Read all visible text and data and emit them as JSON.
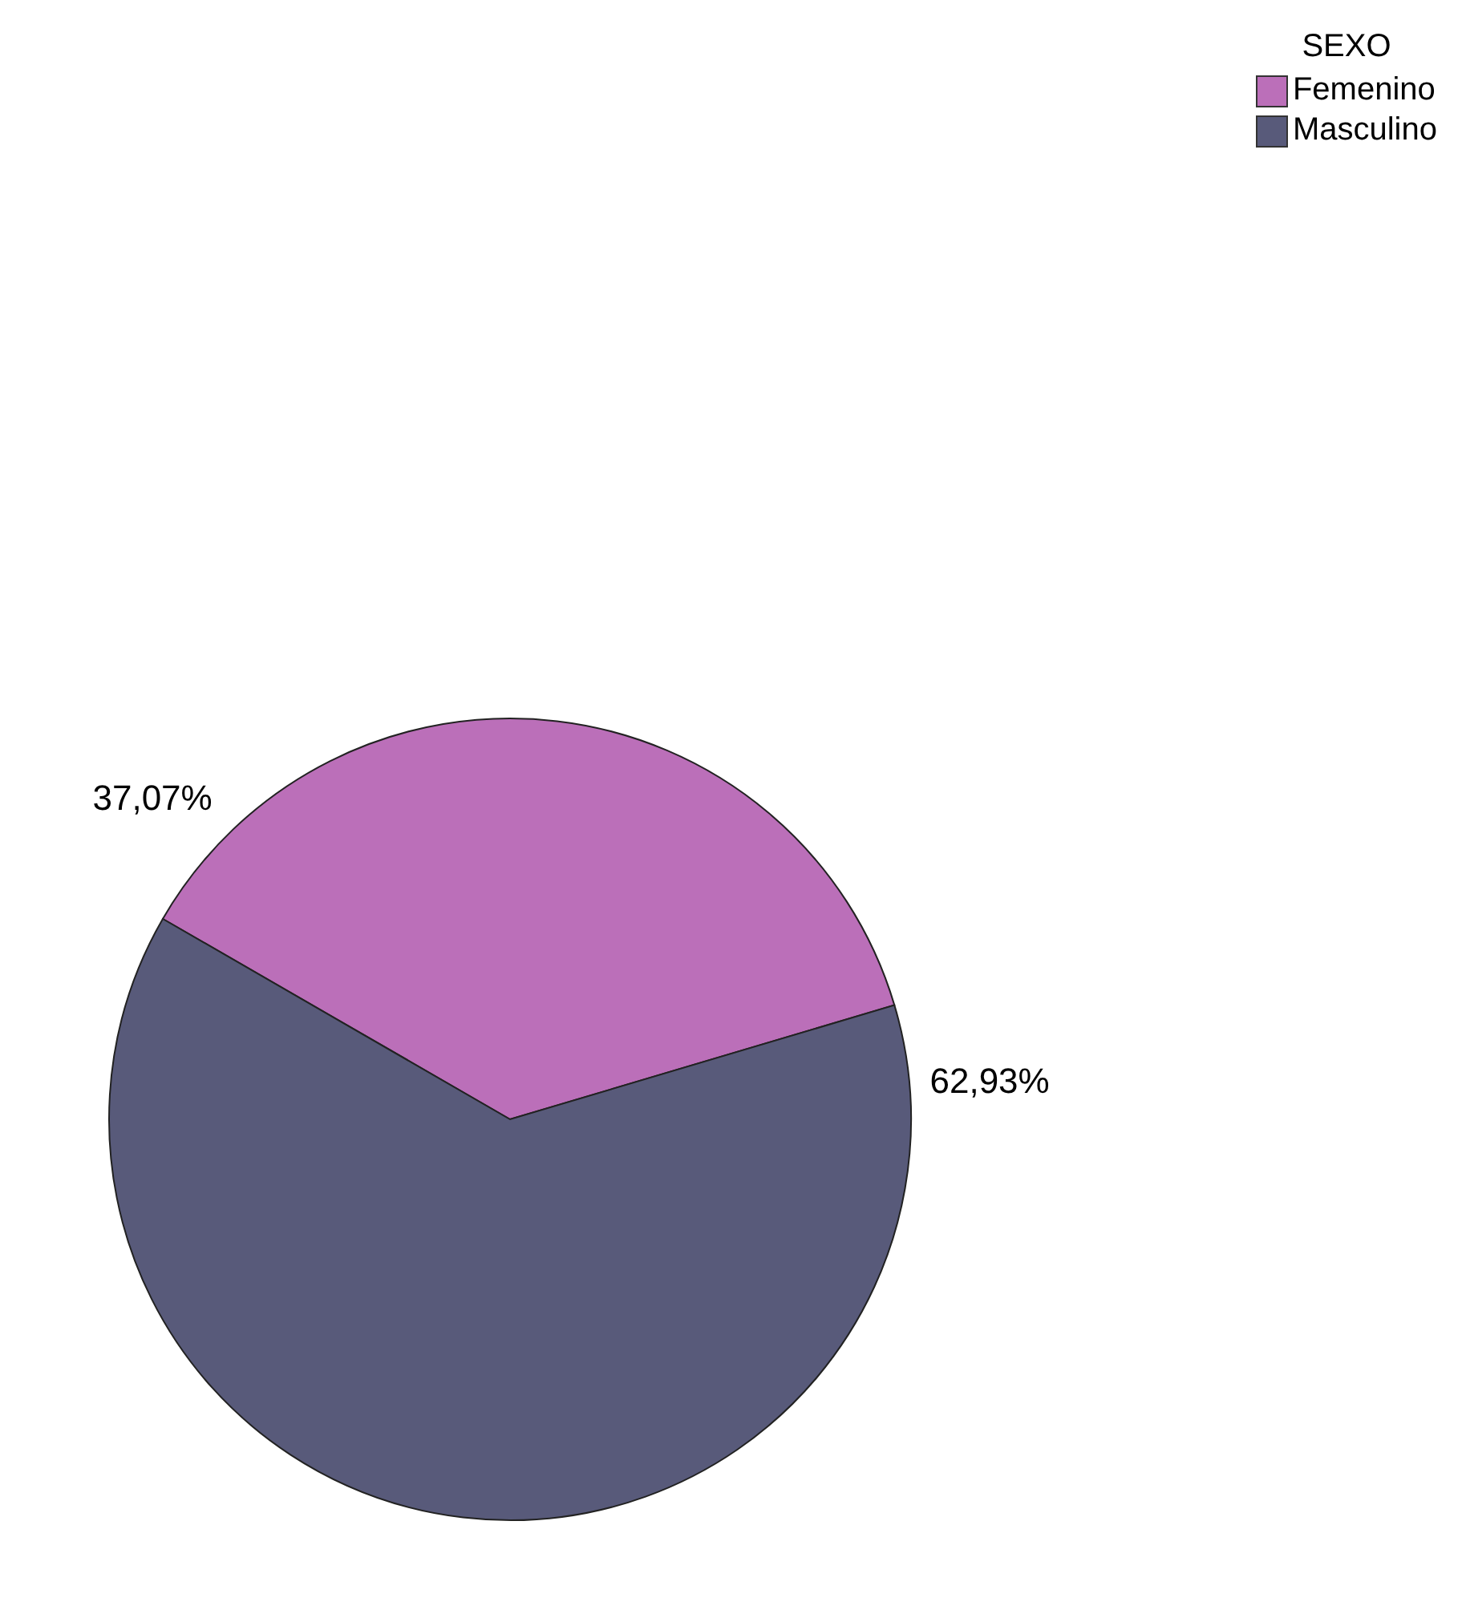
{
  "chart_data": {
    "type": "pie",
    "legend_title": "SEXO",
    "legend": "top right",
    "categories": [
      "Femenino",
      "Masculino"
    ],
    "values": [
      37.07,
      62.93
    ],
    "colors": [
      "#bb6fb9",
      "#585a7a"
    ],
    "value_labels": [
      "37,07%",
      "62,93%"
    ]
  }
}
